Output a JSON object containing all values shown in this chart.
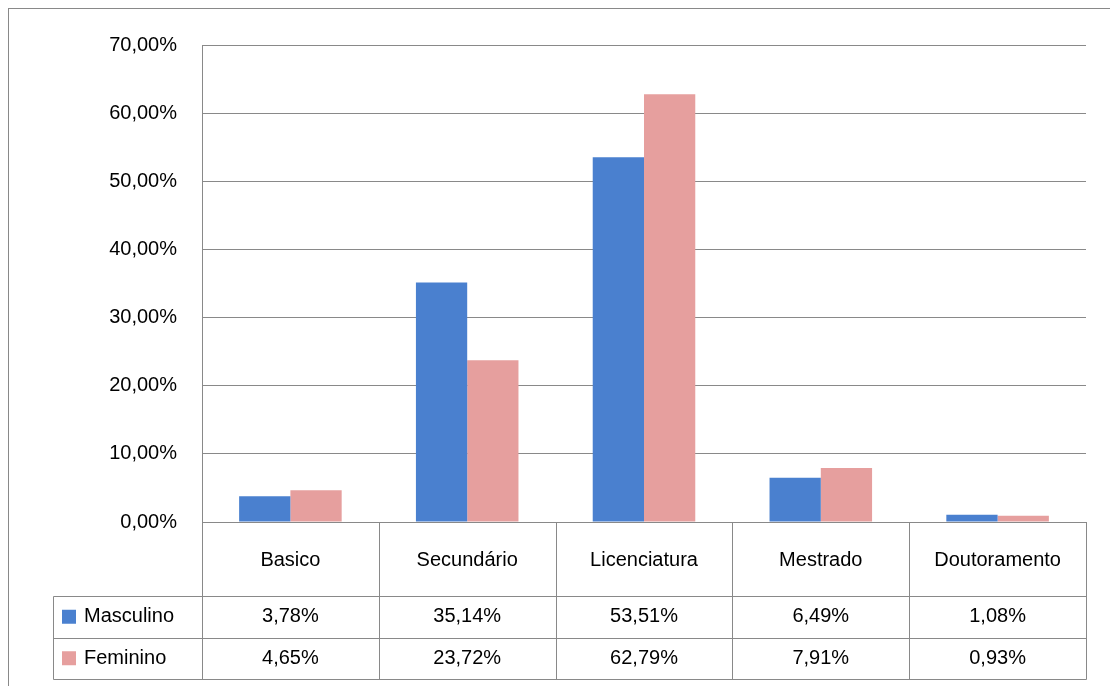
{
  "chart_data": {
    "type": "bar",
    "categories": [
      "Basico",
      "Secundário",
      "Licenciatura",
      "Mestrado",
      "Doutoramento"
    ],
    "series": [
      {
        "name": "Masculino",
        "color": "#4a80cf",
        "values": [
          3.78,
          35.14,
          53.51,
          6.49,
          1.08
        ],
        "value_labels": [
          "3,78%",
          "35,14%",
          "53,51%",
          "6,49%",
          "1,08%"
        ]
      },
      {
        "name": "Feminino",
        "color": "#e69f9e",
        "values": [
          4.65,
          23.72,
          62.79,
          7.91,
          0.93
        ],
        "value_labels": [
          "4,65%",
          "23,72%",
          "62,79%",
          "7,91%",
          "0,93%"
        ]
      }
    ],
    "ylim": [
      0,
      70
    ],
    "yticks": [
      {
        "value": 0,
        "label": "0,00%"
      },
      {
        "value": 10,
        "label": "10,00%"
      },
      {
        "value": 20,
        "label": "20,00%"
      },
      {
        "value": 30,
        "label": "30,00%"
      },
      {
        "value": 40,
        "label": "40,00%"
      },
      {
        "value": 50,
        "label": "50,00%"
      },
      {
        "value": 60,
        "label": "60,00%"
      },
      {
        "value": 70,
        "label": "70,00%"
      }
    ],
    "grid": "y",
    "legend": "bottom left"
  }
}
